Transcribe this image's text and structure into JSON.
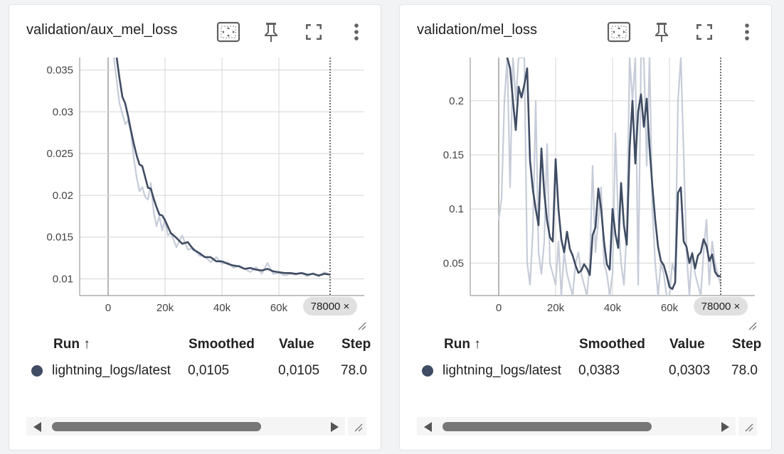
{
  "colors": {
    "smoothed_line": "#3f4c63",
    "raw_line": "#c6ccd8",
    "grid": "#d4d4d4",
    "axis": "#9e9e9e",
    "step_badge_bg": "#e0e0e0",
    "run_dot": "#3f4c63"
  },
  "icons": [
    "fit-domain-icon",
    "pin-icon",
    "fullscreen-icon",
    "more-vert-icon"
  ],
  "cards": [
    {
      "title": "validation/aux_mel_loss",
      "table": {
        "headers": {
          "run": "Run ↑",
          "smoothed": "Smoothed",
          "value": "Value",
          "step": "Step"
        },
        "row": {
          "run": "lightning_logs/latest",
          "smoothed": "0,0105",
          "value": "0,0105",
          "step": "78.0"
        }
      },
      "chart_data": {
        "type": "line",
        "xlabel": "",
        "ylabel": "",
        "xlim": [
          -10000,
          90000
        ],
        "ylim": [
          0.008,
          0.0365
        ],
        "x_ticks": [
          0,
          20000,
          40000,
          60000
        ],
        "x_tick_labels": [
          "0",
          "20k",
          "40k",
          "60k"
        ],
        "y_ticks": [
          0.01,
          0.015,
          0.02,
          0.025,
          0.03,
          0.035
        ],
        "y_tick_labels": [
          "0.01",
          "0.015",
          "0.02",
          "0.025",
          "0.03",
          "0.035"
        ],
        "step_marker": {
          "x": 78000,
          "label": "78000 ×"
        },
        "grid": true,
        "series": [
          {
            "role": "raw",
            "x": [
              2000,
              4000,
              6000,
              7000,
              8000,
              9000,
              10000,
              11000,
              12000,
              13000,
              14000,
              15000,
              16000,
              17000,
              18000,
              19000,
              20000,
              21000,
              22000,
              24000,
              26000,
              28000,
              30000,
              32000,
              34000,
              36000,
              38000,
              40000,
              42000,
              44000,
              46000,
              48000,
              50000,
              52000,
              54000,
              56000,
              58000,
              60000,
              62000,
              64000,
              66000,
              68000,
              70000,
              72000,
              74000,
              76000,
              78000
            ],
            "y": [
              0.0365,
              0.031,
              0.0285,
              0.029,
              0.0275,
              0.0245,
              0.0222,
              0.0205,
              0.021,
              0.0198,
              0.0195,
              0.0215,
              0.018,
              0.0163,
              0.0175,
              0.0158,
              0.0172,
              0.0152,
              0.0155,
              0.0138,
              0.0152,
              0.0135,
              0.0137,
              0.0128,
              0.0127,
              0.012,
              0.0126,
              0.0118,
              0.012,
              0.0113,
              0.0116,
              0.0112,
              0.0108,
              0.0114,
              0.0106,
              0.0119,
              0.0106,
              0.0107,
              0.0104,
              0.0106,
              0.0105,
              0.0107,
              0.0103,
              0.0107,
              0.0103,
              0.0108,
              0.0105
            ]
          },
          {
            "role": "smoothed",
            "x": [
              3000,
              4000,
              5000,
              6000,
              7000,
              8000,
              9000,
              10000,
              11000,
              12000,
              13000,
              14000,
              15000,
              16000,
              17000,
              18000,
              19000,
              20000,
              22000,
              24000,
              26000,
              28000,
              30000,
              32000,
              34000,
              36000,
              38000,
              40000,
              42000,
              44000,
              46000,
              48000,
              50000,
              52000,
              54000,
              56000,
              58000,
              60000,
              62000,
              64000,
              66000,
              68000,
              70000,
              72000,
              74000,
              76000,
              78000
            ],
            "y": [
              0.0365,
              0.034,
              0.0318,
              0.031,
              0.0295,
              0.0278,
              0.0262,
              0.0248,
              0.0237,
              0.0235,
              0.0222,
              0.0209,
              0.0208,
              0.0196,
              0.0186,
              0.0177,
              0.0176,
              0.017,
              0.0155,
              0.0149,
              0.0142,
              0.0144,
              0.0135,
              0.0131,
              0.0126,
              0.0126,
              0.0121,
              0.0121,
              0.0118,
              0.0116,
              0.0115,
              0.0112,
              0.0113,
              0.0111,
              0.011,
              0.0112,
              0.0109,
              0.0108,
              0.0107,
              0.0107,
              0.0106,
              0.0107,
              0.0105,
              0.0106,
              0.0104,
              0.0106,
              0.0105
            ]
          }
        ]
      }
    },
    {
      "title": "validation/mel_loss",
      "table": {
        "headers": {
          "run": "Run ↑",
          "smoothed": "Smoothed",
          "value": "Value",
          "step": "Step"
        },
        "row": {
          "run": "lightning_logs/latest",
          "smoothed": "0,0383",
          "value": "0,0303",
          "step": "78.0"
        }
      },
      "chart_data": {
        "type": "line",
        "xlabel": "",
        "ylabel": "",
        "xlim": [
          -10000,
          90000
        ],
        "ylim": [
          0.02,
          0.24
        ],
        "x_ticks": [
          0,
          20000,
          40000,
          60000
        ],
        "x_tick_labels": [
          "0",
          "20k",
          "40k",
          "60k"
        ],
        "y_ticks": [
          0.05,
          0.1,
          0.15,
          0.2
        ],
        "y_tick_labels": [
          "0.05",
          "0.1",
          "0.15",
          "0.2"
        ],
        "step_marker": {
          "x": 78000,
          "label": "78000 ×"
        },
        "grid": true,
        "series": [
          {
            "role": "raw",
            "x": [
              0,
              1000,
              2000,
              3000,
              4000,
              5000,
              6000,
              7000,
              8000,
              9000,
              10000,
              11000,
              12000,
              13000,
              14000,
              15000,
              16000,
              17000,
              18000,
              19000,
              20000,
              21000,
              22000,
              23000,
              24000,
              25000,
              26000,
              27000,
              28000,
              29000,
              30000,
              31000,
              32000,
              33000,
              34000,
              35000,
              36000,
              37000,
              38000,
              39000,
              40000,
              41000,
              42000,
              43000,
              44000,
              45000,
              46000,
              47000,
              48000,
              49000,
              50000,
              51000,
              52000,
              53000,
              54000,
              55000,
              56000,
              57000,
              58000,
              59000,
              60000,
              61000,
              62000,
              63000,
              64000,
              65000,
              66000,
              67000,
              68000,
              69000,
              70000,
              71000,
              72000,
              73000,
              74000,
              75000,
              76000,
              77000,
              78000
            ],
            "y": [
              0.09,
              0.11,
              0.2,
              0.24,
              0.12,
              0.24,
              0.2,
              0.24,
              0.24,
              0.24,
              0.05,
              0.03,
              0.08,
              0.2,
              0.06,
              0.04,
              0.07,
              0.16,
              0.05,
              0.04,
              0.03,
              0.07,
              0.02,
              0.06,
              0.04,
              0.03,
              0.02,
              0.05,
              0.06,
              0.04,
              0.03,
              0.02,
              0.05,
              0.14,
              0.06,
              0.09,
              0.12,
              0.05,
              0.04,
              0.02,
              0.04,
              0.17,
              0.09,
              0.05,
              0.03,
              0.08,
              0.24,
              0.2,
              0.24,
              0.03,
              0.24,
              0.24,
              0.14,
              0.24,
              0.1,
              0.05,
              0.02,
              0.05,
              0.04,
              0.02,
              0.02,
              0.05,
              0.04,
              0.2,
              0.24,
              0.15,
              0.06,
              0.02,
              0.06,
              0.04,
              0.03,
              0.02,
              0.06,
              0.09,
              0.03,
              0.07,
              0.05,
              0.04,
              0.03
            ]
          },
          {
            "role": "smoothed",
            "x": [
              3000,
              4000,
              5000,
              6000,
              7000,
              8000,
              9000,
              10000,
              11000,
              12000,
              13000,
              14000,
              15000,
              16000,
              17000,
              18000,
              19000,
              20000,
              21000,
              22000,
              23000,
              24000,
              25000,
              26000,
              27000,
              28000,
              29000,
              30000,
              31000,
              32000,
              33000,
              34000,
              35000,
              36000,
              37000,
              38000,
              39000,
              40000,
              41000,
              42000,
              43000,
              44000,
              45000,
              46000,
              47000,
              48000,
              49000,
              50000,
              51000,
              52000,
              53000,
              54000,
              55000,
              56000,
              57000,
              58000,
              59000,
              60000,
              61000,
              62000,
              63000,
              64000,
              65000,
              66000,
              67000,
              68000,
              69000,
              70000,
              71000,
              72000,
              73000,
              74000,
              75000,
              76000,
              77000,
              78000
            ],
            "y": [
              0.24,
              0.23,
              0.2,
              0.173,
              0.213,
              0.203,
              0.215,
              0.23,
              0.145,
              0.118,
              0.1,
              0.085,
              0.156,
              0.115,
              0.089,
              0.074,
              0.07,
              0.146,
              0.1,
              0.072,
              0.06,
              0.079,
              0.063,
              0.057,
              0.048,
              0.041,
              0.043,
              0.049,
              0.045,
              0.039,
              0.076,
              0.083,
              0.119,
              0.1,
              0.07,
              0.049,
              0.044,
              0.1,
              0.077,
              0.064,
              0.124,
              0.085,
              0.067,
              0.156,
              0.2,
              0.142,
              0.19,
              0.206,
              0.176,
              0.202,
              0.157,
              0.121,
              0.09,
              0.065,
              0.052,
              0.048,
              0.039,
              0.028,
              0.026,
              0.032,
              0.115,
              0.12,
              0.07,
              0.065,
              0.05,
              0.059,
              0.045,
              0.057,
              0.06,
              0.072,
              0.066,
              0.052,
              0.058,
              0.042,
              0.038,
              0.038
            ]
          }
        ]
      }
    }
  ]
}
